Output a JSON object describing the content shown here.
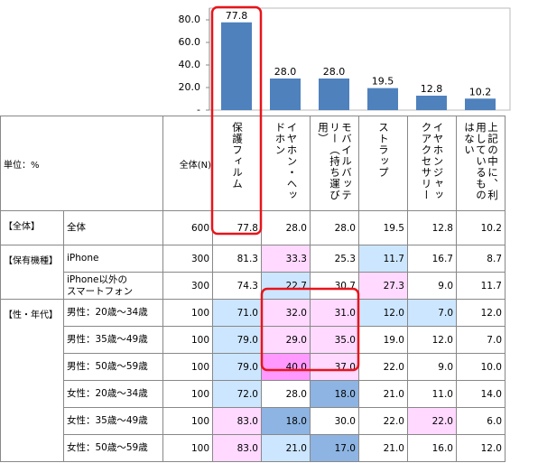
{
  "chart_data": {
    "type": "bar",
    "categories": [
      "保護フィルム",
      "イヤホン・ヘッドホン",
      "モバイルバッテリー（持ち運び用）",
      "ストラップ",
      "イヤホンジャックアクセサリー",
      "上記の中に、利用しているものはない"
    ],
    "values": [
      77.8,
      28.0,
      28.0,
      19.5,
      12.8,
      10.2
    ],
    "value_labels": [
      "77.8",
      "28.0",
      "28.0",
      "19.5",
      "12.8",
      "10.2"
    ],
    "color": "#4f81bd",
    "ylim": [
      0,
      90
    ],
    "yticks": [
      {
        "value": 0,
        "label": "-"
      },
      {
        "value": 20,
        "label": "20.0"
      },
      {
        "value": 40,
        "label": "40.0"
      },
      {
        "value": 60,
        "label": "60.0"
      },
      {
        "value": 80,
        "label": "80.0"
      }
    ]
  },
  "table": {
    "unit": "単位：%",
    "n_label": "全体(N)",
    "groups": [
      {
        "label": "【全体】",
        "rows": [
          {
            "label": "全体",
            "n": 600,
            "values": [
              "77.8",
              "28.0",
              "28.0",
              "19.5",
              "12.8",
              "10.2"
            ],
            "fills": [
              null,
              null,
              null,
              null,
              null,
              null
            ]
          }
        ]
      },
      {
        "label": "【保有機種】",
        "rows": [
          {
            "label": "iPhone",
            "n": 300,
            "values": [
              "81.3",
              "33.3",
              "25.3",
              "11.7",
              "16.7",
              "8.7"
            ],
            "fills": [
              null,
              "#ffd9ff",
              null,
              "#cce6ff",
              null,
              null
            ]
          },
          {
            "label": "iPhone以外の\nスマートフォン",
            "n": 300,
            "values": [
              "74.3",
              "22.7",
              "30.7",
              "27.3",
              "9.0",
              "11.7"
            ],
            "fills": [
              null,
              "#cce6ff",
              null,
              "#ffd9ff",
              null,
              null
            ]
          }
        ]
      },
      {
        "label": "【性・年代】",
        "rows": [
          {
            "label": "男性：20歳～34歳",
            "n": 100,
            "values": [
              "71.0",
              "32.0",
              "31.0",
              "12.0",
              "7.0",
              "12.0"
            ],
            "fills": [
              "#cce6ff",
              "#ffd9ff",
              "#ffd9ff",
              "#cce6ff",
              "#cce6ff",
              null
            ]
          },
          {
            "label": "男性：35歳～49歳",
            "n": 100,
            "values": [
              "79.0",
              "29.0",
              "35.0",
              "19.0",
              "12.0",
              "7.0"
            ],
            "fills": [
              "#cce6ff",
              "#ffd9ff",
              "#ffd9ff",
              null,
              null,
              null
            ]
          },
          {
            "label": "男性：50歳～59歳",
            "n": 100,
            "values": [
              "79.0",
              "40.0",
              "37.0",
              "22.0",
              "9.0",
              "10.0"
            ],
            "fills": [
              "#cce6ff",
              "#ff99ff",
              "#ffd9ff",
              null,
              null,
              null
            ]
          },
          {
            "label": "女性：20歳～34歳",
            "n": 100,
            "values": [
              "72.0",
              "28.0",
              "18.0",
              "21.0",
              "11.0",
              "14.0"
            ],
            "fills": [
              "#cce6ff",
              null,
              "#8db4e2",
              null,
              null,
              null
            ]
          },
          {
            "label": "女性：35歳～49歳",
            "n": 100,
            "values": [
              "83.0",
              "18.0",
              "30.0",
              "22.0",
              "22.0",
              "6.0"
            ],
            "fills": [
              "#ffd9ff",
              "#8db4e2",
              null,
              null,
              "#ffd9ff",
              null
            ]
          },
          {
            "label": "女性：50歳～59歳",
            "n": 100,
            "values": [
              "83.0",
              "21.0",
              "17.0",
              "21.0",
              "16.0",
              "12.0"
            ],
            "fills": [
              "#ffd9ff",
              "#cce6ff",
              "#8db4e2",
              null,
              null,
              null
            ]
          }
        ]
      }
    ]
  }
}
